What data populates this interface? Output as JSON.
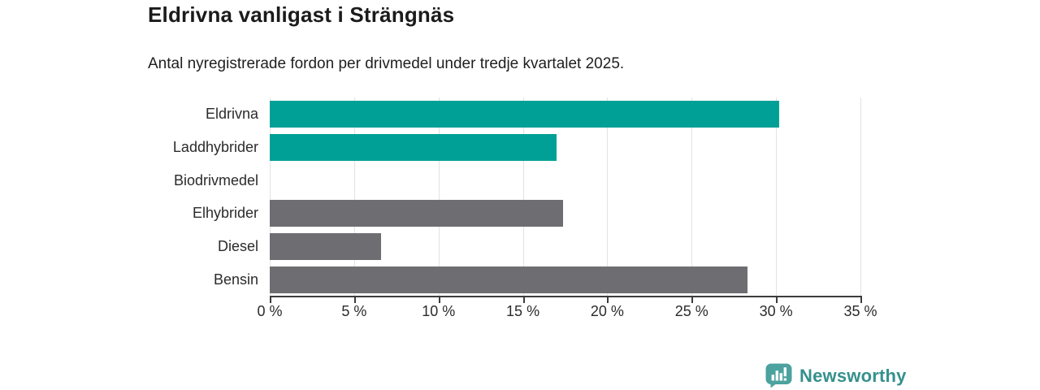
{
  "chart_data": {
    "type": "bar",
    "orientation": "horizontal",
    "title": "Eldrivna vanligast i Strängnäs",
    "subtitle": "Antal nyregistrerade fordon per drivmedel under tredje kvartalet 2025.",
    "categories": [
      "Eldrivna",
      "Laddhybrider",
      "Biodrivmedel",
      "Elhybrider",
      "Diesel",
      "Bensin"
    ],
    "values": [
      30.2,
      17.0,
      0,
      17.4,
      6.6,
      28.3
    ],
    "unit": "%",
    "xlim": [
      0,
      35
    ],
    "x_ticks": [
      "0 %",
      "5 %",
      "10 %",
      "15 %",
      "20 %",
      "25 %",
      "30 %",
      "35 %"
    ],
    "x_tick_values": [
      0,
      5,
      10,
      15,
      20,
      25,
      30,
      35
    ],
    "bar_colors": [
      "#00a096",
      "#00a096",
      "#6e6d72",
      "#6e6d72",
      "#6e6d72",
      "#6e6d72"
    ],
    "highlight_color": "#00a096",
    "default_color": "#6e6d72",
    "grid": true,
    "legend": "none"
  },
  "branding": {
    "logo_text": "Newsworthy",
    "logo_icon": "newsworthy-speech-bubble-bar-chart",
    "logo_text_color": "#35908c",
    "logo_icon_color": "#4ba29e"
  }
}
